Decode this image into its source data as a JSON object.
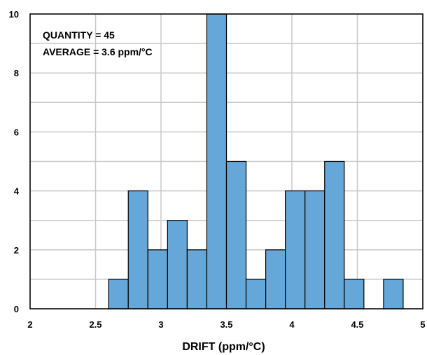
{
  "chart_data": {
    "type": "bar",
    "title": "",
    "xlabel": "DRIFT (ppm/°C)",
    "ylabel": "",
    "xlim": [
      2,
      5
    ],
    "ylim": [
      0,
      10
    ],
    "bin_width": 0.15,
    "xticks": [
      "2",
      "2.5",
      "3",
      "3.5",
      "4",
      "4.5",
      "5"
    ],
    "yticks": [
      "0",
      "2",
      "4",
      "6",
      "8",
      "10"
    ],
    "grid": true,
    "annotations": [
      "QUANTITY = 45",
      "AVERAGE = 3.6 ppm/°C"
    ],
    "bar_color": "#64A7D8",
    "bins": [
      {
        "start": 2.6,
        "value": 1
      },
      {
        "start": 2.75,
        "value": 4
      },
      {
        "start": 2.9,
        "value": 2
      },
      {
        "start": 3.05,
        "value": 3
      },
      {
        "start": 3.2,
        "value": 2
      },
      {
        "start": 3.35,
        "value": 10
      },
      {
        "start": 3.5,
        "value": 5
      },
      {
        "start": 3.65,
        "value": 1
      },
      {
        "start": 3.8,
        "value": 2
      },
      {
        "start": 3.95,
        "value": 4
      },
      {
        "start": 4.1,
        "value": 4
      },
      {
        "start": 4.25,
        "value": 5
      },
      {
        "start": 4.4,
        "value": 1
      },
      {
        "start": 4.7,
        "value": 1
      }
    ]
  }
}
